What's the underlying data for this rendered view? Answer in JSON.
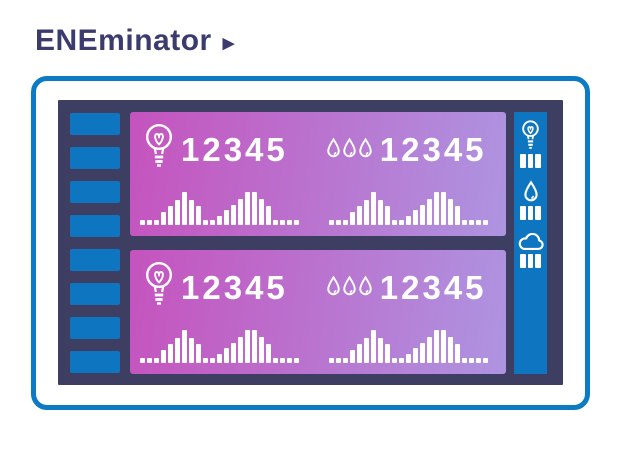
{
  "page": {
    "title": "ENEminator",
    "title_arrow": "▶"
  },
  "colors": {
    "title_navy": "#3b3b6d",
    "frame_blue": "#0d7ac4",
    "screen_dark": "#3e3d62",
    "accent_blue": "#0e76c1",
    "meter_gradient_start": "#c553be",
    "meter_gradient_end": "#ae94e1",
    "content_white": "#ffffff"
  },
  "left_sidebar": {
    "segment_count": 8
  },
  "meters": [
    {
      "electric_icon": "lightbulb-icon",
      "electric_value": "12345",
      "water_icon": "water-drops-icon",
      "water_value": "12345"
    },
    {
      "electric_icon": "lightbulb-icon",
      "electric_value": "12345",
      "water_icon": "water-drops-icon",
      "water_value": "12345"
    }
  ],
  "right_sidebar": {
    "items": [
      {
        "icon": "lightbulb-icon"
      },
      {
        "icon": "water-droplet-icon"
      },
      {
        "icon": "cloud-icon"
      }
    ]
  },
  "chart_data": {
    "type": "bar",
    "values": [
      14,
      14,
      14,
      40,
      58,
      76,
      100,
      76,
      58,
      14,
      14,
      26,
      44,
      62,
      80,
      100,
      100,
      80,
      58,
      14,
      14,
      14,
      14
    ],
    "ylim": [
      0,
      100
    ],
    "title": "",
    "xlabel": "",
    "ylabel": ""
  }
}
